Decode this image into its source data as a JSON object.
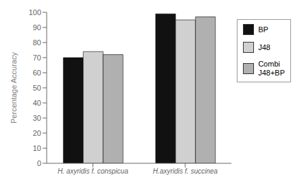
{
  "chart_data": {
    "type": "bar",
    "categories": [
      "H. axyridis f. conspicua",
      "H.axyridis f. succinea"
    ],
    "series": [
      {
        "name": "BP",
        "values": [
          70,
          99
        ],
        "color": "#111111"
      },
      {
        "name": "J48",
        "values": [
          74,
          95
        ],
        "color": "#d0d0d0"
      },
      {
        "name": "Combi\nJ48+BP",
        "values": [
          72,
          97
        ],
        "color": "#b0b0b0"
      }
    ],
    "ylabel": "Percentage Accuracy",
    "ylim": [
      0,
      100
    ],
    "yticks": [
      0,
      10,
      20,
      30,
      40,
      50,
      60,
      70,
      80,
      90,
      100
    ],
    "legend": "right"
  }
}
